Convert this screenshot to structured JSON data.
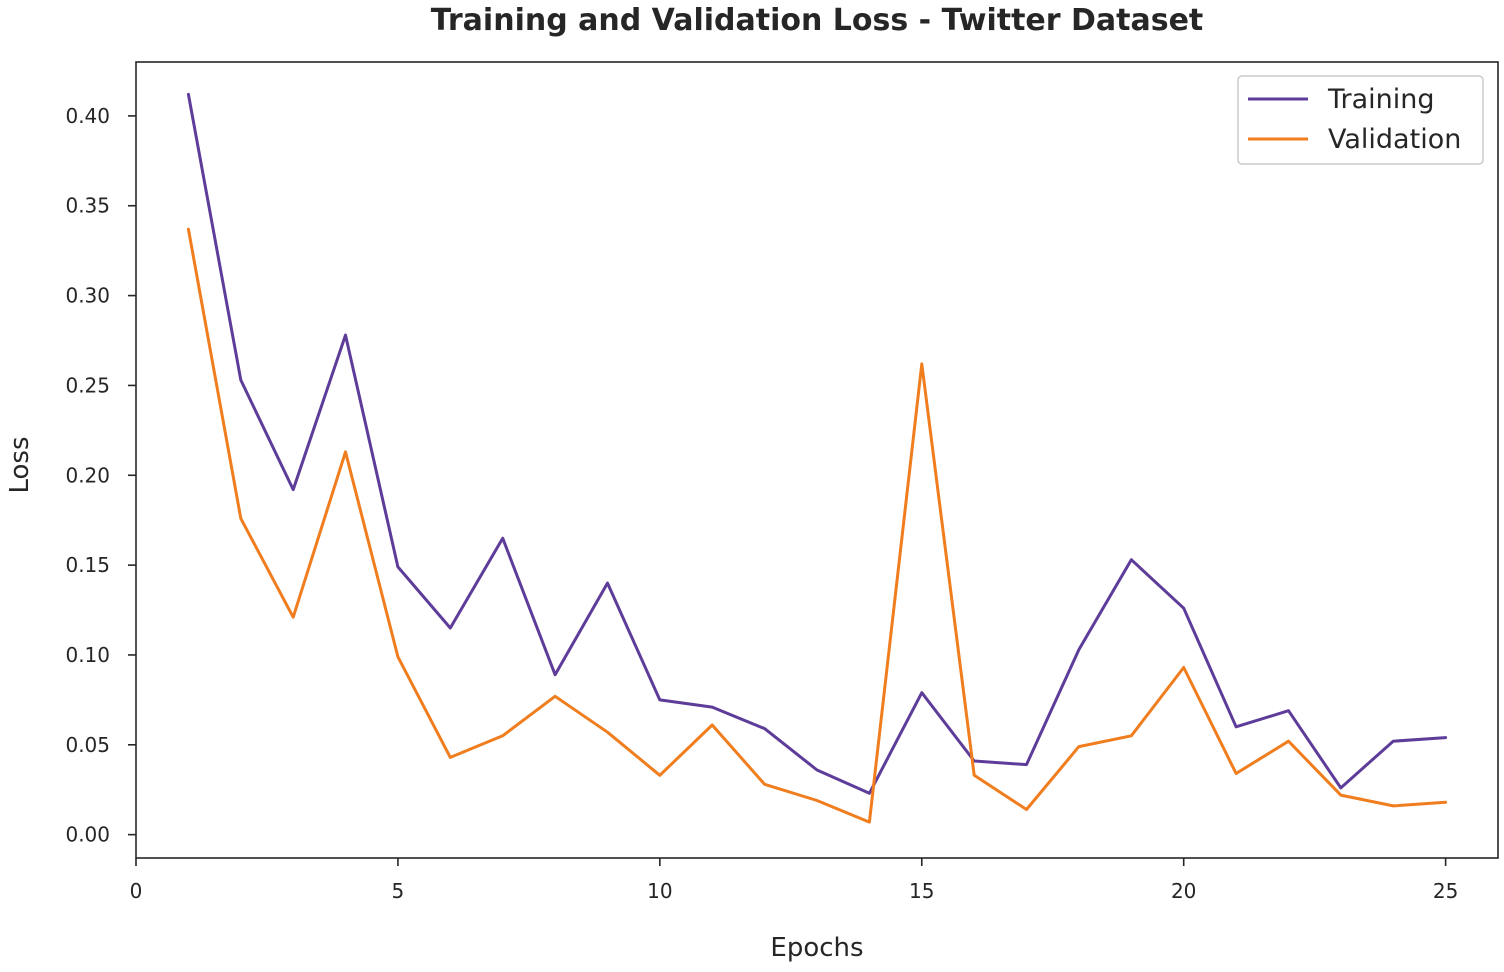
{
  "chart_data": {
    "type": "line",
    "title": "Training and Validation Loss - Twitter Dataset",
    "xlabel": "Epochs",
    "ylabel": "Loss",
    "xlim": [
      0,
      26
    ],
    "ylim": [
      -0.013,
      0.43
    ],
    "xticks": [
      0,
      5,
      10,
      15,
      20,
      25
    ],
    "xtick_labels": [
      "0",
      "5",
      "10",
      "15",
      "20",
      "25"
    ],
    "yticks": [
      0.0,
      0.05,
      0.1,
      0.15,
      0.2,
      0.25,
      0.3,
      0.35,
      0.4
    ],
    "ytick_labels": [
      "0.00",
      "0.05",
      "0.10",
      "0.15",
      "0.20",
      "0.25",
      "0.30",
      "0.35",
      "0.40"
    ],
    "grid": false,
    "legend_position": "top-right",
    "x": [
      1,
      2,
      3,
      4,
      5,
      6,
      7,
      8,
      9,
      10,
      11,
      12,
      13,
      14,
      15,
      16,
      17,
      18,
      19,
      20,
      21,
      22,
      23,
      24,
      25
    ],
    "series": [
      {
        "name": "Training",
        "color": "#5e3c99",
        "values": [
          0.412,
          0.253,
          0.192,
          0.278,
          0.149,
          0.115,
          0.165,
          0.089,
          0.14,
          0.075,
          0.071,
          0.059,
          0.036,
          0.023,
          0.079,
          0.041,
          0.039,
          0.103,
          0.153,
          0.126,
          0.06,
          0.069,
          0.026,
          0.052,
          0.054
        ]
      },
      {
        "name": "Validation",
        "color": "#f07d1e",
        "values": [
          0.337,
          0.176,
          0.121,
          0.213,
          0.099,
          0.043,
          0.055,
          0.077,
          0.057,
          0.033,
          0.061,
          0.028,
          0.019,
          0.007,
          0.262,
          0.033,
          0.014,
          0.049,
          0.055,
          0.093,
          0.034,
          0.052,
          0.022,
          0.016,
          0.018
        ]
      }
    ]
  }
}
